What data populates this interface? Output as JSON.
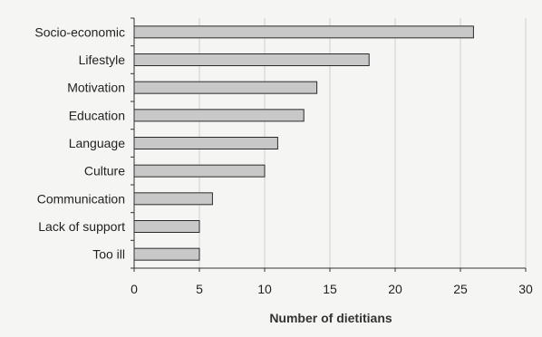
{
  "chart_data": {
    "type": "bar",
    "orientation": "horizontal",
    "title": "",
    "xlabel": "Number of dietitians",
    "ylabel": "",
    "categories": [
      "Socio-economic",
      "Lifestyle",
      "Motivation",
      "Education",
      "Language",
      "Culture",
      "Communication",
      "Lack of support",
      "Too ill"
    ],
    "values": [
      26,
      18,
      14,
      13,
      11,
      10,
      6,
      5,
      5
    ],
    "xlim": [
      0,
      30
    ],
    "xticks": [
      "0",
      "5",
      "10",
      "15",
      "20",
      "25",
      "30"
    ],
    "grid": true,
    "legend": "none",
    "colors": {
      "bar_fill": "#c8c8c8",
      "bar_stroke": "#2a2a2a",
      "grid": "#cfcfcf",
      "axis": "#333333",
      "text": "#222222",
      "background": "#f5f5f3"
    }
  }
}
